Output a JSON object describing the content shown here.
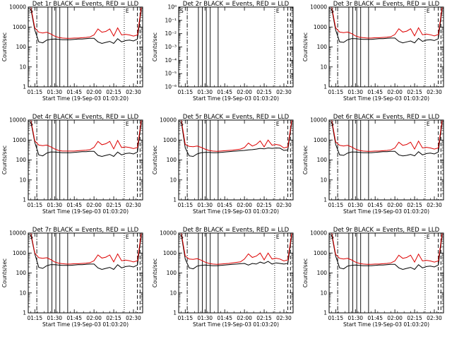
{
  "common": {
    "xlabel": "Start Time (19-Sep-03 01:03:20)",
    "ylabel": "Counts/sec",
    "xticks": [
      "01:15",
      "01:30",
      "01:45",
      "02:00",
      "02:15",
      "02:30"
    ],
    "yticks_log": [
      "1",
      "10",
      "100",
      "1000",
      "10000"
    ],
    "colors": {
      "events": "#000000",
      "lld": "#dd0000",
      "axis": "#000000"
    }
  },
  "chart_data": [
    {
      "type": "line",
      "title": "Det 1r BLACK = Events, RED = LLD",
      "yscale": "log",
      "ylim": [
        1,
        10000
      ],
      "x_minutes": [
        72,
        75,
        78,
        81,
        84,
        87,
        90,
        93,
        96,
        99,
        102,
        105,
        108,
        111,
        114,
        117,
        120,
        123,
        126,
        129,
        132,
        135,
        138,
        141,
        144,
        147,
        150,
        153,
        156
      ],
      "series": [
        {
          "name": "Events",
          "color": "#000000",
          "values": [
            8000,
            700,
            180,
            160,
            220,
            240,
            250,
            240,
            230,
            230,
            230,
            240,
            250,
            250,
            260,
            270,
            270,
            180,
            150,
            170,
            190,
            150,
            260,
            180,
            210,
            220,
            200,
            250,
            8000
          ]
        },
        {
          "name": "LLD",
          "color": "#dd0000",
          "values": [
            10000,
            900,
            550,
            500,
            550,
            450,
            350,
            300,
            280,
            270,
            270,
            280,
            280,
            290,
            300,
            320,
            400,
            800,
            550,
            600,
            800,
            350,
            900,
            400,
            430,
            400,
            350,
            400,
            10000
          ]
        }
      ]
    },
    {
      "type": "line",
      "title": "Det 2r BLACK = Events, RED = LLD",
      "yscale": "log",
      "ylim": [
        1e-06,
        1
      ],
      "yticks": [
        "10⁻⁶",
        "10⁻⁵",
        "10⁻⁴",
        "10⁻³",
        "10⁻²",
        "10⁻¹",
        "10⁰"
      ],
      "x_minutes": [],
      "series": []
    },
    {
      "type": "line",
      "title": "Det 3r BLACK = Events, RED = LLD",
      "yscale": "log",
      "ylim": [
        1,
        10000
      ],
      "x_minutes": [
        72,
        75,
        78,
        81,
        84,
        87,
        90,
        93,
        96,
        99,
        102,
        105,
        108,
        111,
        114,
        117,
        120,
        123,
        126,
        129,
        132,
        135,
        138,
        141,
        144,
        147,
        150,
        153,
        156
      ],
      "series": [
        {
          "name": "Events",
          "color": "#000000",
          "values": [
            8000,
            700,
            180,
            170,
            230,
            260,
            260,
            250,
            240,
            240,
            240,
            250,
            260,
            260,
            270,
            280,
            280,
            190,
            160,
            180,
            200,
            160,
            270,
            190,
            220,
            230,
            210,
            260,
            8000
          ]
        },
        {
          "name": "LLD",
          "color": "#dd0000",
          "values": [
            10000,
            900,
            560,
            520,
            560,
            470,
            360,
            310,
            290,
            280,
            280,
            290,
            290,
            300,
            310,
            330,
            420,
            820,
            560,
            620,
            820,
            360,
            920,
            410,
            440,
            410,
            360,
            420,
            10000
          ]
        }
      ]
    },
    {
      "type": "line",
      "title": "Det 4r BLACK = Events, RED = LLD",
      "yscale": "log",
      "ylim": [
        1,
        10000
      ],
      "x_minutes": [
        72,
        75,
        78,
        81,
        84,
        87,
        90,
        93,
        96,
        99,
        102,
        105,
        108,
        111,
        114,
        117,
        120,
        123,
        126,
        129,
        132,
        135,
        138,
        141,
        144,
        147,
        150,
        153,
        156
      ],
      "series": [
        {
          "name": "Events",
          "color": "#000000",
          "values": [
            8000,
            750,
            180,
            160,
            220,
            250,
            250,
            240,
            230,
            230,
            230,
            240,
            250,
            260,
            260,
            270,
            270,
            170,
            150,
            170,
            190,
            150,
            250,
            180,
            210,
            220,
            200,
            250,
            8000
          ]
        },
        {
          "name": "LLD",
          "color": "#dd0000",
          "values": [
            10000,
            900,
            560,
            520,
            560,
            460,
            360,
            300,
            280,
            280,
            280,
            280,
            290,
            300,
            310,
            330,
            430,
            850,
            580,
            650,
            850,
            360,
            950,
            420,
            450,
            420,
            370,
            420,
            10000
          ]
        }
      ]
    },
    {
      "type": "line",
      "title": "Det 5r BLACK = Events, RED = LLD",
      "yscale": "log",
      "ylim": [
        1,
        10000
      ],
      "x_minutes": [
        72,
        75,
        78,
        81,
        84,
        87,
        90,
        93,
        96,
        99,
        102,
        105,
        108,
        111,
        114,
        117,
        120,
        123,
        126,
        129,
        132,
        135,
        138,
        141,
        144,
        147,
        150,
        153,
        156
      ],
      "series": [
        {
          "name": "Events",
          "color": "#000000",
          "values": [
            8000,
            400,
            160,
            150,
            200,
            230,
            240,
            240,
            230,
            230,
            240,
            250,
            260,
            270,
            280,
            290,
            300,
            320,
            330,
            350,
            380,
            360,
            400,
            380,
            400,
            390,
            300,
            320,
            8000
          ]
        },
        {
          "name": "LLD",
          "color": "#dd0000",
          "values": [
            10000,
            600,
            480,
            460,
            500,
            430,
            350,
            300,
            280,
            270,
            280,
            290,
            300,
            310,
            330,
            350,
            420,
            700,
            500,
            600,
            900,
            450,
            1000,
            550,
            600,
            550,
            400,
            450,
            10000
          ]
        }
      ]
    },
    {
      "type": "line",
      "title": "Det 6r BLACK = Events, RED = LLD",
      "yscale": "log",
      "ylim": [
        1,
        10000
      ],
      "x_minutes": [
        72,
        75,
        78,
        81,
        84,
        87,
        90,
        93,
        96,
        99,
        102,
        105,
        108,
        111,
        114,
        117,
        120,
        123,
        126,
        129,
        132,
        135,
        138,
        141,
        144,
        147,
        150,
        153,
        156
      ],
      "series": [
        {
          "name": "Events",
          "color": "#000000",
          "values": [
            8000,
            600,
            180,
            170,
            220,
            250,
            250,
            240,
            230,
            230,
            230,
            240,
            250,
            260,
            260,
            270,
            270,
            180,
            160,
            170,
            190,
            160,
            260,
            180,
            210,
            220,
            200,
            250,
            8000
          ]
        },
        {
          "name": "LLD",
          "color": "#dd0000",
          "values": [
            10000,
            800,
            540,
            500,
            540,
            450,
            350,
            300,
            280,
            270,
            270,
            280,
            280,
            290,
            300,
            320,
            400,
            780,
            540,
            600,
            780,
            350,
            880,
            400,
            430,
            400,
            350,
            400,
            10000
          ]
        }
      ]
    },
    {
      "type": "line",
      "title": "Det 7r BLACK = Events, RED = LLD",
      "yscale": "log",
      "ylim": [
        1,
        10000
      ],
      "x_minutes": [
        72,
        75,
        78,
        81,
        84,
        87,
        90,
        93,
        96,
        99,
        102,
        105,
        108,
        111,
        114,
        117,
        120,
        123,
        126,
        129,
        132,
        135,
        138,
        141,
        144,
        147,
        150,
        153,
        156
      ],
      "series": [
        {
          "name": "Events",
          "color": "#000000",
          "values": [
            8000,
            900,
            190,
            170,
            230,
            260,
            260,
            250,
            240,
            240,
            240,
            250,
            260,
            260,
            270,
            280,
            280,
            180,
            150,
            170,
            190,
            150,
            260,
            180,
            210,
            220,
            200,
            250,
            8000
          ]
        },
        {
          "name": "LLD",
          "color": "#dd0000",
          "values": [
            10000,
            1000,
            580,
            540,
            580,
            470,
            360,
            310,
            290,
            280,
            280,
            290,
            290,
            300,
            310,
            330,
            410,
            800,
            560,
            620,
            800,
            360,
            900,
            410,
            440,
            410,
            360,
            410,
            10000
          ]
        }
      ]
    },
    {
      "type": "line",
      "title": "Det 8r BLACK = Events, RED = LLD",
      "yscale": "log",
      "ylim": [
        1,
        10000
      ],
      "x_minutes": [
        72,
        75,
        78,
        81,
        84,
        87,
        90,
        93,
        96,
        99,
        102,
        105,
        108,
        111,
        114,
        117,
        120,
        123,
        126,
        129,
        132,
        135,
        138,
        141,
        144,
        147,
        150,
        153,
        156
      ],
      "series": [
        {
          "name": "Events",
          "color": "#000000",
          "values": [
            8000,
            500,
            180,
            160,
            220,
            240,
            250,
            240,
            230,
            230,
            240,
            250,
            260,
            270,
            280,
            290,
            300,
            250,
            300,
            280,
            350,
            300,
            380,
            280,
            320,
            300,
            280,
            300,
            8000
          ]
        },
        {
          "name": "LLD",
          "color": "#dd0000",
          "values": [
            10000,
            700,
            500,
            480,
            520,
            440,
            350,
            300,
            280,
            270,
            280,
            290,
            300,
            320,
            340,
            360,
            500,
            900,
            600,
            700,
            1000,
            450,
            1000,
            500,
            550,
            500,
            400,
            450,
            10000
          ]
        }
      ]
    },
    {
      "type": "line",
      "title": "Det 9r BLACK = Events, RED = LLD",
      "yscale": "log",
      "ylim": [
        1,
        10000
      ],
      "x_minutes": [
        72,
        75,
        78,
        81,
        84,
        87,
        90,
        93,
        96,
        99,
        102,
        105,
        108,
        111,
        114,
        117,
        120,
        123,
        126,
        129,
        132,
        135,
        138,
        141,
        144,
        147,
        150,
        153,
        156
      ],
      "series": [
        {
          "name": "Events",
          "color": "#000000",
          "values": [
            8000,
            700,
            180,
            160,
            220,
            240,
            250,
            240,
            230,
            230,
            230,
            240,
            250,
            250,
            260,
            270,
            270,
            180,
            150,
            170,
            190,
            150,
            260,
            180,
            210,
            220,
            200,
            250,
            8000
          ]
        },
        {
          "name": "LLD",
          "color": "#dd0000",
          "values": [
            10000,
            850,
            540,
            500,
            540,
            450,
            350,
            300,
            280,
            270,
            270,
            280,
            280,
            290,
            300,
            320,
            400,
            780,
            540,
            600,
            780,
            350,
            880,
            400,
            430,
            400,
            350,
            400,
            10000
          ]
        }
      ]
    }
  ],
  "markers": {
    "dashdot_minutes": [
      76.5
    ],
    "solid_minutes": [
      85,
      88,
      91,
      94,
      100
    ],
    "dotted_minutes": [
      143
    ],
    "dashed_minutes": [
      153,
      155
    ],
    "flag_labels": [
      "S",
      "E"
    ]
  }
}
